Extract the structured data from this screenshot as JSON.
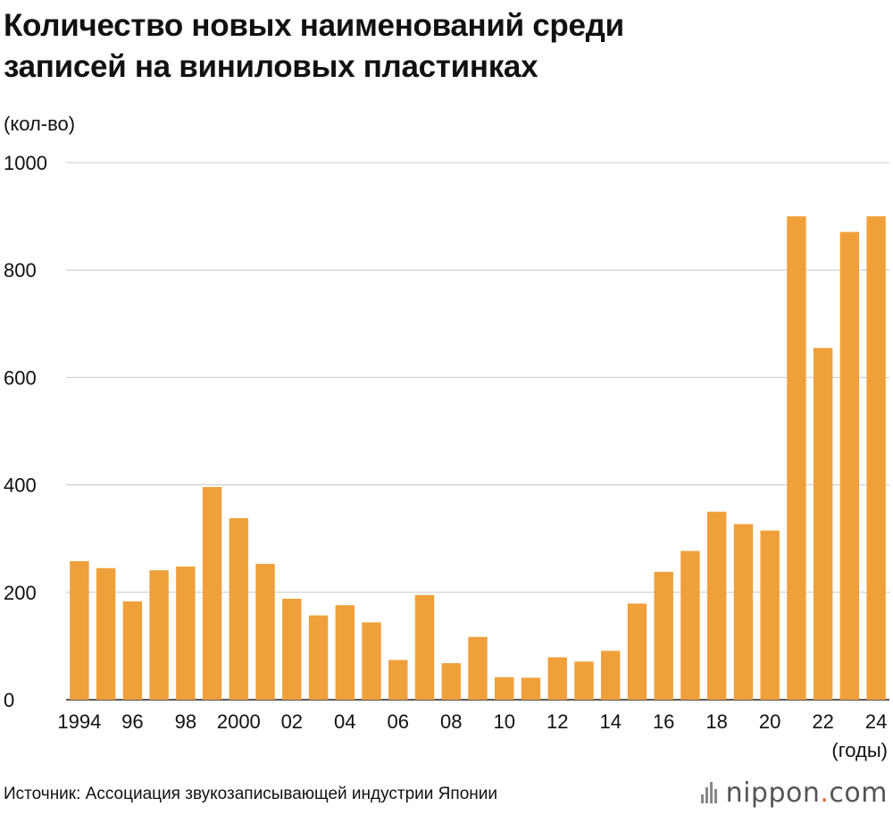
{
  "chart_data": {
    "type": "bar",
    "title_lines": [
      "Количество новых наименований среди",
      "записей на виниловых пластинках"
    ],
    "ylabel": "(кол-во)",
    "xlabel": "(годы)",
    "ylim": [
      0,
      1000
    ],
    "yticks": [
      0,
      200,
      400,
      600,
      800,
      1000
    ],
    "bar_color": "#f0a03a",
    "categories": [
      "1994",
      "1995",
      "1996",
      "1997",
      "1998",
      "1999",
      "2000",
      "2001",
      "2002",
      "2003",
      "2004",
      "2005",
      "2006",
      "2007",
      "2008",
      "2009",
      "2010",
      "2011",
      "2012",
      "2013",
      "2014",
      "2015",
      "2016",
      "2017",
      "2018",
      "2019",
      "2020",
      "2021",
      "2022",
      "2023",
      "2024"
    ],
    "tick_labels": [
      "1994",
      "",
      "96",
      "",
      "98",
      "",
      "2000",
      "",
      "02",
      "",
      "04",
      "",
      "06",
      "",
      "08",
      "",
      "10",
      "",
      "12",
      "",
      "14",
      "",
      "16",
      "",
      "18",
      "",
      "20",
      "",
      "22",
      "",
      "24"
    ],
    "values": [
      258,
      245,
      183,
      241,
      248,
      396,
      338,
      253,
      188,
      157,
      176,
      144,
      74,
      195,
      68,
      117,
      42,
      41,
      79,
      71,
      91,
      179,
      238,
      277,
      350,
      327,
      315,
      900,
      655,
      871,
      900
    ]
  },
  "source": "Источник: Ассоциация звукозаписывающей индустрии Японии",
  "logo": {
    "brand": "nippon",
    "dot": ".",
    "suffix": "com"
  }
}
